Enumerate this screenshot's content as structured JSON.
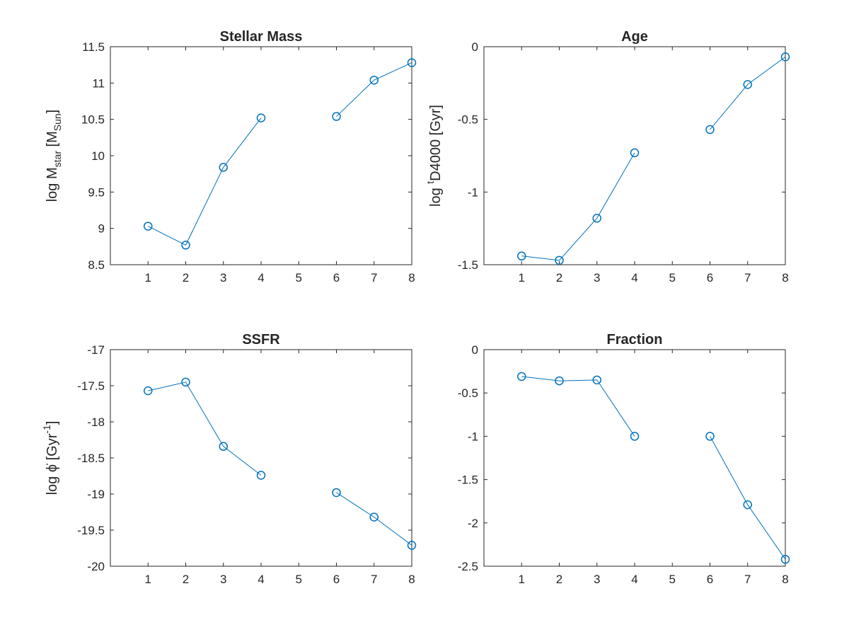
{
  "figure": {
    "line_color": "#0072BD",
    "text_color": "#262626",
    "background": "#ffffff"
  },
  "chart_data": [
    {
      "type": "line",
      "title": "Stellar Mass",
      "ylabel": {
        "main": "log M",
        "sub1": "star",
        "rest": " [M",
        "sub2": "Sun",
        "tail": "]"
      },
      "x_ticks": [
        1,
        2,
        3,
        4,
        5,
        6,
        7,
        8
      ],
      "ylim": [
        8.5,
        11.5
      ],
      "y_ticks": [
        "8.5",
        "9",
        "9.5",
        "10",
        "10.5",
        "11",
        "11.5"
      ],
      "segments": [
        {
          "x": [
            1,
            2,
            3,
            4
          ],
          "y": [
            9.03,
            8.77,
            9.84,
            10.52
          ]
        },
        {
          "x": [
            6,
            7,
            8
          ],
          "y": [
            10.54,
            11.04,
            11.28
          ]
        }
      ]
    },
    {
      "type": "line",
      "title": "Age",
      "ylabel": {
        "main": "log ",
        "sup": "t",
        "rest": "D4000 [Gyr]"
      },
      "x_ticks": [
        1,
        2,
        3,
        4,
        5,
        6,
        7,
        8
      ],
      "ylim": [
        -1.5,
        0
      ],
      "y_ticks": [
        "-1.5",
        "-1",
        "-0.5",
        "0"
      ],
      "segments": [
        {
          "x": [
            1,
            2,
            3,
            4
          ],
          "y": [
            -1.44,
            -1.47,
            -1.18,
            -0.73
          ]
        },
        {
          "x": [
            6,
            7,
            8
          ],
          "y": [
            -0.57,
            -0.26,
            -0.07
          ]
        }
      ]
    },
    {
      "type": "line",
      "title": "SSFR",
      "ylabel": {
        "main": "log ϕ̇ [Gyr",
        "sup": "-1",
        "tail": "]"
      },
      "x_ticks": [
        1,
        2,
        3,
        4,
        5,
        6,
        7,
        8
      ],
      "ylim": [
        -20,
        -17
      ],
      "y_ticks": [
        "-20",
        "-19.5",
        "-19",
        "-18.5",
        "-18",
        "-17.5",
        "-17"
      ],
      "segments": [
        {
          "x": [
            1,
            2,
            3,
            4
          ],
          "y": [
            -17.57,
            -17.45,
            -18.34,
            -18.74
          ]
        },
        {
          "x": [
            6,
            7,
            8
          ],
          "y": [
            -18.98,
            -19.32,
            -19.71
          ]
        }
      ]
    },
    {
      "type": "line",
      "title": "Fraction",
      "ylabel": null,
      "x_ticks": [
        1,
        2,
        3,
        4,
        5,
        6,
        7,
        8
      ],
      "ylim": [
        -2.5,
        0
      ],
      "y_ticks": [
        "-2.5",
        "-2",
        "-1.5",
        "-1",
        "-0.5",
        "0"
      ],
      "segments": [
        {
          "x": [
            1,
            2,
            3,
            4
          ],
          "y": [
            -0.31,
            -0.36,
            -0.35,
            -1.0
          ]
        },
        {
          "x": [
            6,
            7,
            8
          ],
          "y": [
            -1.0,
            -1.79,
            -2.42
          ]
        }
      ]
    }
  ]
}
